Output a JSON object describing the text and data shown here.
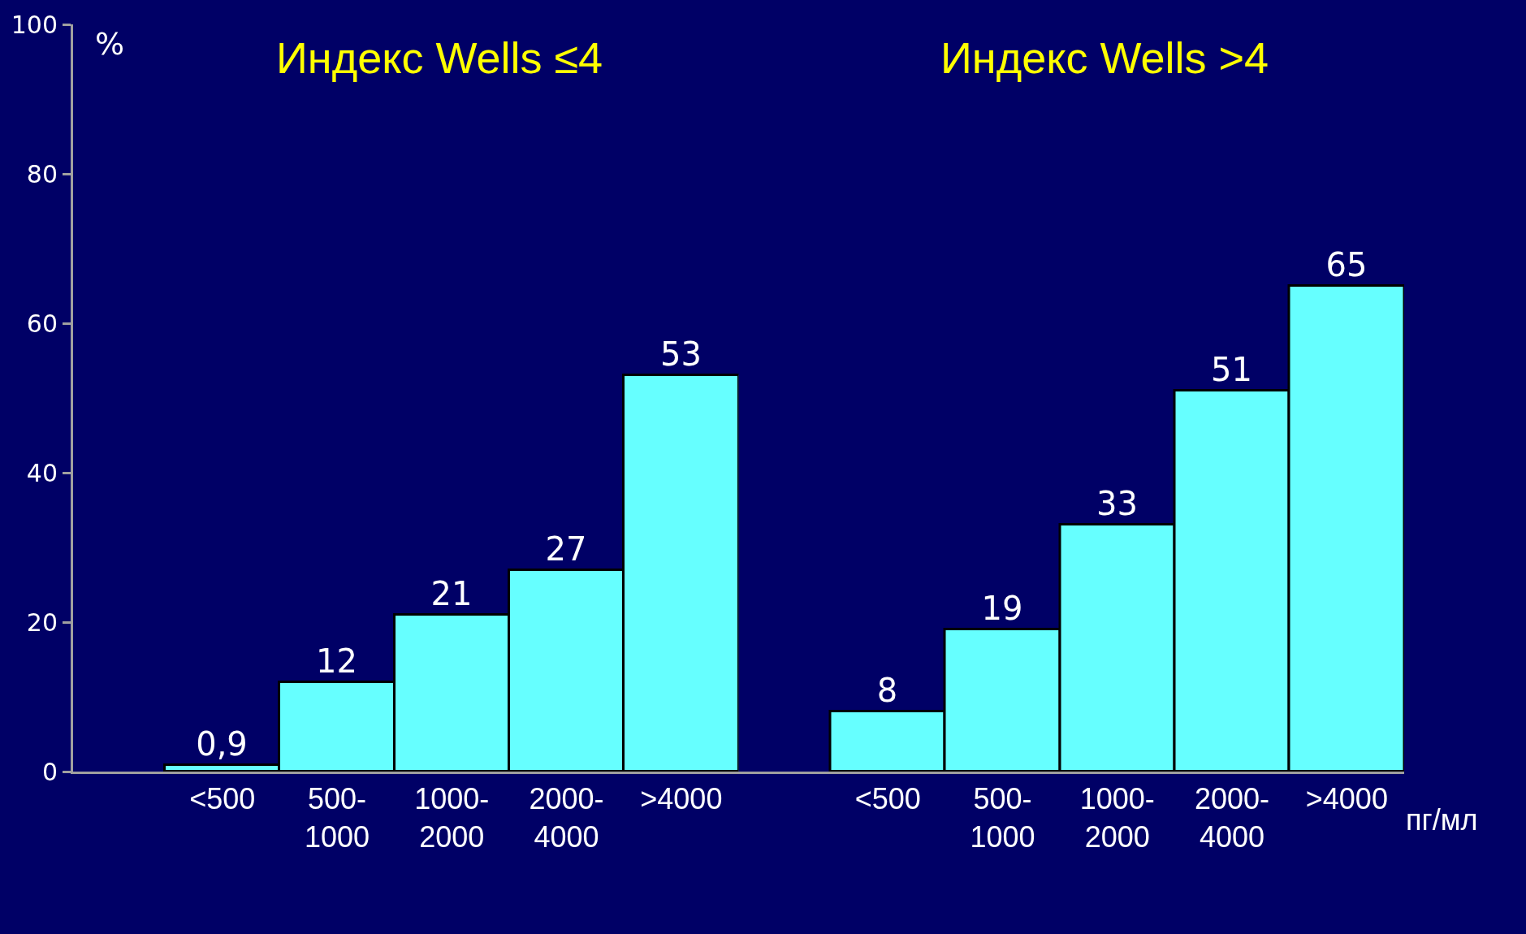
{
  "chart_data": [
    {
      "type": "bar",
      "title": "Индекс Wells ≤4",
      "ylabel": "%",
      "categories": [
        "<500",
        "500-1000",
        "1000-2000",
        "2000-4000",
        ">4000"
      ],
      "values": [
        0.9,
        12,
        21,
        27,
        53
      ],
      "value_labels": [
        "0,9",
        "12",
        "21",
        "27",
        "53"
      ],
      "color": "#66ffff",
      "ylim": [
        0,
        100
      ],
      "yticks": [
        0,
        20,
        40,
        60,
        80,
        100
      ]
    },
    {
      "type": "bar",
      "title": "Индекс Wells >4",
      "xlabel": "пг/мл",
      "categories": [
        "<500",
        "500-1000",
        "1000-2000",
        "2000-4000",
        ">4000"
      ],
      "values": [
        8,
        19,
        33,
        51,
        65
      ],
      "value_labels": [
        "8",
        "19",
        "33",
        "51",
        "65"
      ],
      "color": "#66ffff",
      "ylim": [
        0,
        100
      ],
      "yticks": [
        0,
        20,
        40,
        60,
        80,
        100
      ],
      "tick_labels": "x"
    }
  ]
}
